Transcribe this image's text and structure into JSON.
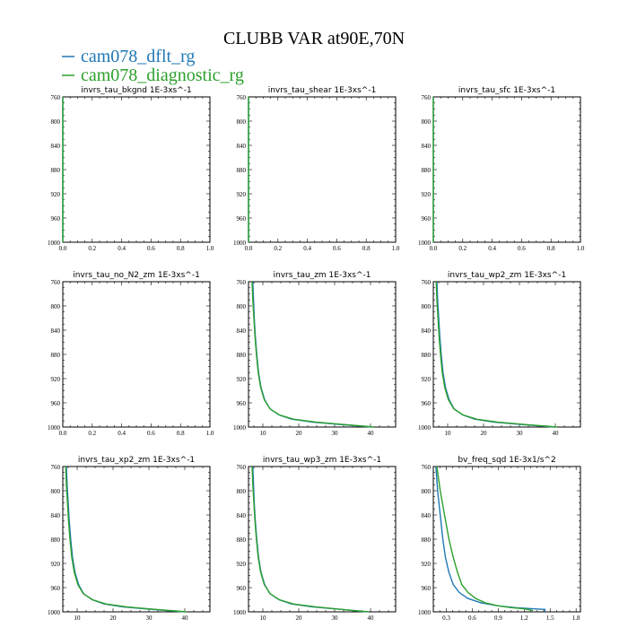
{
  "title": "CLUBB VAR at90E,70N",
  "legend": [
    {
      "name": "cam078_dflt_rg",
      "color": "#1f77b4"
    },
    {
      "name": "cam078_diagnostic_rg",
      "color": "#2ca02c"
    }
  ],
  "chart_data": [
    {
      "type": "line",
      "title": "invrs_tau_bkgnd   1E-3xs^-1",
      "xlim": [
        0,
        1
      ],
      "ylim": [
        760,
        1000
      ],
      "y_inverted": true,
      "xticks": [
        "0.0",
        "0.2",
        "0.4",
        "0.6",
        "0.8",
        "1.0"
      ],
      "xtick_values": [
        0,
        0.2,
        0.4,
        0.6,
        0.8,
        1.0
      ],
      "yticks": [
        "760",
        "800",
        "840",
        "880",
        "920",
        "960",
        "1000"
      ],
      "ytick_values": [
        760,
        800,
        840,
        880,
        920,
        960,
        1000
      ],
      "series": [
        {
          "name": "cam078_dflt_rg",
          "x": [
            0,
            0,
            0,
            0,
            0
          ],
          "y": [
            760,
            800,
            880,
            960,
            1000
          ]
        },
        {
          "name": "cam078_diagnostic_rg",
          "x": [
            0,
            0,
            0,
            0,
            0
          ],
          "y": [
            760,
            800,
            880,
            960,
            1000
          ]
        }
      ]
    },
    {
      "type": "line",
      "title": "invrs_tau_shear   1E-3xs^-1",
      "xlim": [
        0,
        1
      ],
      "ylim": [
        760,
        1000
      ],
      "y_inverted": true,
      "xticks": [
        "0.0",
        "0.2",
        "0.4",
        "0.6",
        "0.8",
        "1.0"
      ],
      "xtick_values": [
        0,
        0.2,
        0.4,
        0.6,
        0.8,
        1.0
      ],
      "yticks": [
        "760",
        "800",
        "840",
        "880",
        "920",
        "960",
        "1000"
      ],
      "ytick_values": [
        760,
        800,
        840,
        880,
        920,
        960,
        1000
      ],
      "series": [
        {
          "name": "cam078_dflt_rg",
          "x": [
            0,
            0,
            0,
            0,
            0
          ],
          "y": [
            760,
            800,
            880,
            960,
            1000
          ]
        },
        {
          "name": "cam078_diagnostic_rg",
          "x": [
            0,
            0,
            0,
            0,
            0
          ],
          "y": [
            760,
            800,
            880,
            960,
            1000
          ]
        }
      ]
    },
    {
      "type": "line",
      "title": "invrs_tau_sfc   1E-3xs^-1",
      "xlim": [
        0,
        1
      ],
      "ylim": [
        760,
        1000
      ],
      "y_inverted": true,
      "xticks": [
        "0.0",
        "0.2",
        "0.4",
        "0.6",
        "0.8",
        "1.0"
      ],
      "xtick_values": [
        0,
        0.2,
        0.4,
        0.6,
        0.8,
        1.0
      ],
      "yticks": [
        "760",
        "800",
        "840",
        "880",
        "920",
        "960",
        "1000"
      ],
      "ytick_values": [
        760,
        800,
        840,
        880,
        920,
        960,
        1000
      ],
      "series": [
        {
          "name": "cam078_dflt_rg",
          "x": [
            0,
            0,
            0,
            0,
            0
          ],
          "y": [
            760,
            800,
            880,
            960,
            1000
          ]
        },
        {
          "name": "cam078_diagnostic_rg",
          "x": [
            0,
            0,
            0,
            0,
            0
          ],
          "y": [
            760,
            800,
            880,
            960,
            1000
          ]
        }
      ]
    },
    {
      "type": "line",
      "title": "invrs_tau_no_N2_zm   1E-3xs^-1",
      "xlim": [
        0,
        1
      ],
      "ylim": [
        760,
        1000
      ],
      "y_inverted": true,
      "xticks": [
        "0.0",
        "0.2",
        "0.4",
        "0.6",
        "0.8",
        "1.0"
      ],
      "xtick_values": [
        0,
        0.2,
        0.4,
        0.6,
        0.8,
        1.0
      ],
      "yticks": [
        "760",
        "800",
        "840",
        "880",
        "920",
        "960",
        "1000"
      ],
      "ytick_values": [
        760,
        800,
        840,
        880,
        920,
        960,
        1000
      ],
      "series": []
    },
    {
      "type": "line",
      "title": "invrs_tau_zm   1E-3xs^-1",
      "xlim": [
        6,
        47
      ],
      "ylim": [
        760,
        1000
      ],
      "y_inverted": true,
      "xticks": [
        "10",
        "20",
        "30",
        "40"
      ],
      "xtick_values": [
        10,
        20,
        30,
        40
      ],
      "yticks": [
        "760",
        "800",
        "840",
        "880",
        "920",
        "960",
        "1000"
      ],
      "ytick_values": [
        760,
        800,
        840,
        880,
        920,
        960,
        1000
      ],
      "series": [
        {
          "name": "cam078_dflt_rg",
          "x": [
            7.2,
            7.4,
            7.6,
            7.9,
            8.3,
            8.8,
            9.5,
            10.5,
            12.0,
            14.5,
            18.0,
            24.0,
            32.0,
            40.5
          ],
          "y": [
            760,
            790,
            820,
            850,
            880,
            910,
            935,
            955,
            970,
            980,
            987,
            992,
            996,
            1000
          ]
        },
        {
          "name": "cam078_diagnostic_rg",
          "x": [
            7.0,
            7.2,
            7.5,
            7.8,
            8.2,
            8.7,
            9.4,
            10.4,
            12.0,
            14.6,
            18.5,
            25.0,
            33.0,
            41.0
          ],
          "y": [
            760,
            790,
            820,
            850,
            880,
            910,
            935,
            955,
            970,
            980,
            987,
            992,
            996,
            1000
          ]
        }
      ]
    },
    {
      "type": "line",
      "title": "invrs_tau_wp2_zm   1E-3xs^-1",
      "xlim": [
        6,
        47
      ],
      "ylim": [
        760,
        1000
      ],
      "y_inverted": true,
      "xticks": [
        "10",
        "20",
        "30",
        "40"
      ],
      "xtick_values": [
        10,
        20,
        30,
        40
      ],
      "yticks": [
        "760",
        "800",
        "840",
        "880",
        "920",
        "960",
        "1000"
      ],
      "ytick_values": [
        760,
        800,
        840,
        880,
        920,
        960,
        1000
      ],
      "series": [
        {
          "name": "cam078_dflt_rg",
          "x": [
            7.0,
            7.2,
            7.5,
            7.8,
            8.2,
            8.7,
            9.4,
            10.4,
            11.8,
            14.2,
            17.5,
            23.0,
            31.0,
            40.0
          ],
          "y": [
            760,
            790,
            820,
            850,
            880,
            910,
            935,
            955,
            970,
            980,
            987,
            992,
            996,
            1000
          ]
        },
        {
          "name": "cam078_diagnostic_rg",
          "x": [
            6.8,
            7.0,
            7.3,
            7.6,
            8.0,
            8.5,
            9.2,
            10.2,
            11.7,
            14.3,
            18.0,
            24.0,
            32.0,
            40.5
          ],
          "y": [
            760,
            790,
            820,
            850,
            880,
            910,
            935,
            955,
            970,
            980,
            987,
            992,
            996,
            1000
          ]
        }
      ]
    },
    {
      "type": "line",
      "title": "invrs_tau_xp2_zm   1E-3xs^-1",
      "xlim": [
        6,
        47
      ],
      "ylim": [
        760,
        1000
      ],
      "y_inverted": true,
      "xticks": [
        "10",
        "20",
        "30",
        "40"
      ],
      "xtick_values": [
        10,
        20,
        30,
        40
      ],
      "yticks": [
        "760",
        "800",
        "840",
        "880",
        "920",
        "960",
        "1000"
      ],
      "ytick_values": [
        760,
        800,
        840,
        880,
        920,
        960,
        1000
      ],
      "series": [
        {
          "name": "cam078_dflt_rg",
          "x": [
            7.0,
            7.2,
            7.5,
            7.8,
            8.2,
            8.7,
            9.4,
            10.4,
            11.8,
            14.2,
            17.5,
            23.0,
            31.0,
            40.0
          ],
          "y": [
            760,
            790,
            820,
            850,
            880,
            910,
            935,
            955,
            970,
            980,
            987,
            992,
            996,
            1000
          ]
        },
        {
          "name": "cam078_diagnostic_rg",
          "x": [
            6.8,
            7.0,
            7.3,
            7.6,
            8.0,
            8.5,
            9.2,
            10.2,
            11.7,
            14.3,
            18.0,
            24.0,
            32.0,
            40.5
          ],
          "y": [
            760,
            790,
            820,
            850,
            880,
            910,
            935,
            955,
            970,
            980,
            987,
            992,
            996,
            1000
          ]
        }
      ]
    },
    {
      "type": "line",
      "title": "invrs_tau_wp3_zm   1E-3xs^-1",
      "xlim": [
        6,
        47
      ],
      "ylim": [
        760,
        1000
      ],
      "y_inverted": true,
      "xticks": [
        "10",
        "20",
        "30",
        "40"
      ],
      "xtick_values": [
        10,
        20,
        30,
        40
      ],
      "yticks": [
        "760",
        "800",
        "840",
        "880",
        "920",
        "960",
        "1000"
      ],
      "ytick_values": [
        760,
        800,
        840,
        880,
        920,
        960,
        1000
      ],
      "series": [
        {
          "name": "cam078_dflt_rg",
          "x": [
            7.2,
            7.4,
            7.6,
            7.9,
            8.3,
            8.8,
            9.5,
            10.5,
            12.0,
            14.5,
            18.0,
            24.0,
            32.0,
            39.0
          ],
          "y": [
            760,
            790,
            820,
            850,
            880,
            910,
            935,
            955,
            970,
            980,
            987,
            992,
            996,
            1000
          ]
        },
        {
          "name": "cam078_diagnostic_rg",
          "x": [
            7.0,
            7.2,
            7.5,
            7.8,
            8.2,
            8.7,
            9.4,
            10.4,
            12.0,
            14.6,
            18.5,
            25.0,
            32.0,
            39.5
          ],
          "y": [
            760,
            790,
            820,
            850,
            880,
            910,
            935,
            955,
            970,
            980,
            987,
            992,
            996,
            1000
          ]
        }
      ]
    },
    {
      "type": "line",
      "title": "bv_freq_sqd   1E-3x1/s^2",
      "xlim": [
        0.15,
        1.85
      ],
      "ylim": [
        760,
        1000
      ],
      "y_inverted": true,
      "xticks": [
        "0.3",
        "0.6",
        "0.9",
        "1.2",
        "1.5",
        "1.8"
      ],
      "xtick_values": [
        0.3,
        0.6,
        0.9,
        1.2,
        1.5,
        1.8
      ],
      "yticks": [
        "760",
        "800",
        "840",
        "880",
        "920",
        "960",
        "1000"
      ],
      "ytick_values": [
        760,
        800,
        840,
        880,
        920,
        960,
        1000
      ],
      "series": [
        {
          "name": "cam078_dflt_rg",
          "x": [
            0.18,
            0.2,
            0.23,
            0.26,
            0.29,
            0.33,
            0.38,
            0.45,
            0.55,
            0.7,
            0.9,
            1.1,
            1.3,
            1.44,
            1.44
          ],
          "y": [
            760,
            800,
            840,
            880,
            910,
            935,
            955,
            968,
            978,
            985,
            990,
            993,
            995,
            996,
            1000
          ]
        },
        {
          "name": "cam078_diagnostic_rg",
          "x": [
            0.19,
            0.23,
            0.28,
            0.33,
            0.38,
            0.43,
            0.48,
            0.55,
            0.64,
            0.75,
            0.9,
            1.05,
            1.2,
            1.3
          ],
          "y": [
            760,
            800,
            840,
            880,
            910,
            935,
            955,
            968,
            978,
            985,
            990,
            993,
            995,
            998
          ]
        }
      ]
    }
  ]
}
